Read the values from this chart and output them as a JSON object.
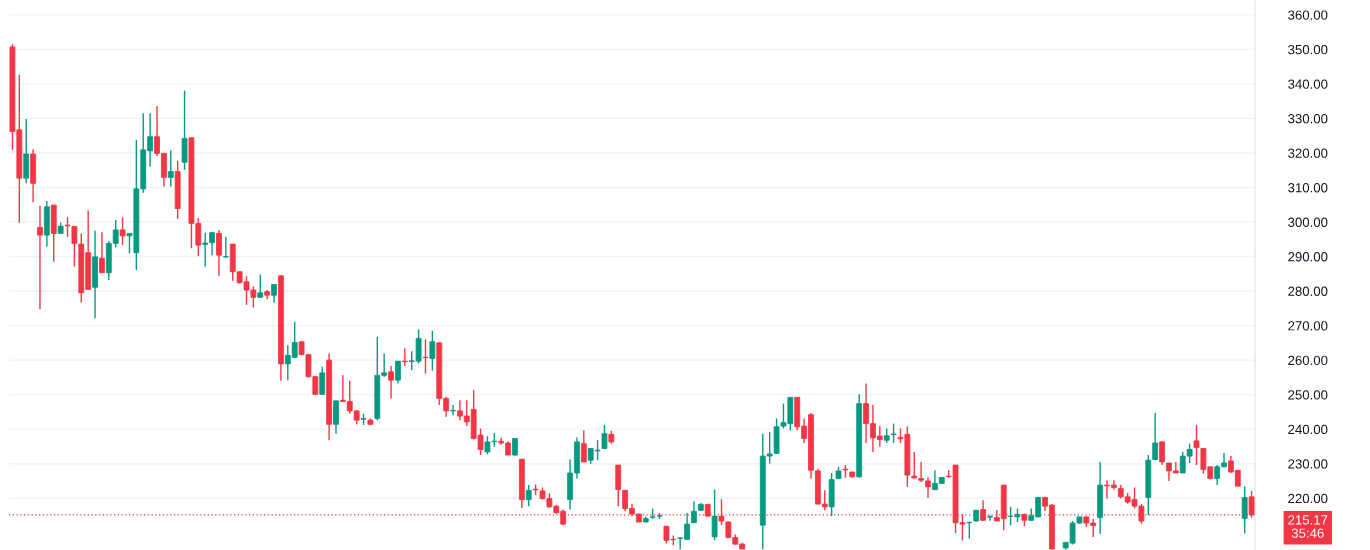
{
  "chart_data": {
    "type": "candlestick",
    "categories": [
      null,
      null,
      null,
      null,
      null,
      null,
      null,
      null,
      null,
      null,
      null,
      null,
      null,
      null,
      null,
      null,
      null,
      null,
      null,
      null,
      null,
      null,
      null,
      null,
      null,
      null,
      null,
      null,
      null,
      null,
      null,
      null,
      null,
      null,
      null,
      null,
      null,
      null,
      null,
      null,
      null,
      null,
      null,
      null,
      null,
      null,
      null,
      null,
      null,
      null,
      null,
      null,
      null,
      null,
      null,
      null,
      null,
      null,
      null,
      null,
      null,
      null,
      null,
      null,
      null,
      null,
      null,
      null,
      null,
      null,
      null,
      null,
      null,
      null,
      null,
      null,
      null,
      null,
      null,
      null,
      null,
      null,
      null,
      null,
      null,
      null,
      null,
      null,
      null,
      null,
      null,
      null,
      null,
      null,
      null,
      null,
      null,
      null,
      null,
      null,
      null,
      null,
      null,
      null,
      null,
      null,
      null,
      null,
      null,
      null,
      null,
      null,
      null,
      null,
      null,
      null,
      null,
      null,
      null,
      null,
      null,
      null,
      null,
      null,
      null,
      null,
      null,
      null,
      null,
      null,
      null,
      null,
      null,
      null,
      null,
      null,
      null,
      null,
      null,
      null,
      null,
      null,
      null,
      null,
      null,
      null,
      null,
      null,
      null,
      null,
      null,
      null,
      null,
      null,
      null,
      null,
      null,
      null,
      null,
      null,
      null,
      null,
      null,
      null,
      null,
      null,
      null,
      null,
      null,
      null,
      null,
      null,
      null,
      null,
      null,
      null,
      null,
      null,
      null,
      null,
      null
    ],
    "ohlc": [
      [
        350.7,
        351.5,
        320.9,
        326.2
      ],
      [
        326.7,
        342.6,
        299.8,
        312.7
      ],
      [
        312.7,
        329.8,
        311.2,
        319.7
      ],
      [
        319.7,
        321.1,
        305.7,
        311.2
      ],
      [
        298.4,
        304.7,
        274.7,
        296.2
      ],
      [
        296.2,
        306.1,
        292.8,
        304.4
      ],
      [
        304.9,
        304.9,
        288.5,
        296.7
      ],
      [
        296.7,
        299.8,
        296.7,
        298.8
      ],
      [
        299.1,
        301.4,
        295.7,
        298.9
      ],
      [
        298.7,
        298.7,
        287.1,
        293.8
      ],
      [
        293.6,
        296.7,
        276.7,
        279.5
      ],
      [
        291.1,
        303.3,
        280.3,
        280.5
      ],
      [
        281.1,
        297.5,
        272.1,
        289.9
      ],
      [
        289.5,
        297.0,
        285.3,
        285.3
      ],
      [
        285.3,
        294.5,
        283.2,
        293.8
      ],
      [
        293.8,
        300.6,
        292.7,
        297.7
      ],
      [
        297.7,
        301.4,
        293.3,
        296.0
      ],
      [
        296.0,
        296.7,
        290.9,
        296.7
      ],
      [
        291.1,
        323.8,
        286.1,
        309.6
      ],
      [
        309.6,
        331.5,
        308.5,
        320.9
      ],
      [
        320.6,
        331.5,
        316.0,
        324.7
      ],
      [
        324.7,
        333.6,
        319.1,
        319.9
      ],
      [
        319.9,
        319.9,
        310.3,
        312.9
      ],
      [
        312.9,
        320.7,
        310.3,
        314.6
      ],
      [
        314.6,
        317.8,
        300.9,
        303.9
      ],
      [
        317.3,
        338.1,
        315.1,
        324.2
      ],
      [
        324.4,
        324.4,
        292.4,
        299.6
      ],
      [
        299.6,
        301.1,
        290.1,
        293.3
      ],
      [
        293.5,
        296.9,
        287.1,
        293.9
      ],
      [
        294.0,
        297.2,
        290.4,
        296.9
      ],
      [
        296.7,
        297.7,
        284.4,
        290.4
      ],
      [
        289.9,
        295.7,
        289.5,
        290.0
      ],
      [
        293.6,
        293.6,
        283.0,
        285.6
      ],
      [
        285.6,
        285.6,
        282.2,
        282.4
      ],
      [
        282.7,
        284.3,
        276.0,
        280.3
      ],
      [
        280.3,
        281.3,
        275.2,
        278.2
      ],
      [
        278.2,
        284.8,
        278.0,
        279.5
      ],
      [
        279.8,
        280.3,
        277.6,
        278.8
      ],
      [
        278.8,
        281.9,
        276.6,
        281.9
      ],
      [
        284.4,
        284.6,
        254.0,
        258.9
      ],
      [
        258.9,
        264.3,
        254.2,
        261.4
      ],
      [
        260.8,
        271.1,
        260.6,
        265.1
      ],
      [
        265.3,
        265.5,
        261.4,
        261.6
      ],
      [
        261.6,
        261.8,
        255.0,
        255.2
      ],
      [
        255.2,
        255.4,
        249.9,
        250.1
      ],
      [
        250.1,
        258.1,
        249.9,
        256.3
      ],
      [
        260.0,
        261.9,
        236.8,
        241.4
      ],
      [
        241.4,
        248.2,
        238.7,
        248.2
      ],
      [
        248.4,
        255.6,
        247.9,
        248.0
      ],
      [
        248.0,
        254.0,
        244.5,
        245.3
      ],
      [
        245.3,
        245.5,
        241.4,
        242.6
      ],
      [
        242.9,
        244.5,
        241.2,
        243.1
      ],
      [
        242.6,
        243.1,
        241.2,
        241.4
      ],
      [
        243.1,
        266.8,
        242.6,
        255.6
      ],
      [
        255.6,
        261.9,
        255.1,
        256.3
      ],
      [
        256.6,
        258.3,
        248.9,
        254.2
      ],
      [
        254.2,
        259.7,
        253.2,
        259.7
      ],
      [
        259.7,
        263.4,
        258.3,
        259.5
      ],
      [
        259.6,
        262.6,
        257.1,
        259.8
      ],
      [
        259.7,
        268.9,
        259.0,
        266.3
      ],
      [
        260.8,
        266.0,
        256.1,
        260.7
      ],
      [
        260.5,
        268.5,
        257.0,
        265.3
      ],
      [
        265.0,
        265.2,
        247.0,
        248.9
      ],
      [
        248.9,
        249.4,
        243.6,
        245.3
      ],
      [
        245.3,
        247.0,
        244.0,
        245.4
      ],
      [
        245.3,
        248.4,
        242.6,
        243.8
      ],
      [
        243.8,
        248.4,
        241.0,
        242.1
      ],
      [
        245.7,
        251.3,
        237.0,
        237.3
      ],
      [
        238.3,
        240.2,
        232.5,
        234.1
      ],
      [
        233.4,
        238.0,
        232.7,
        236.3
      ],
      [
        236.4,
        238.9,
        234.9,
        236.5
      ],
      [
        236.5,
        237.5,
        235.5,
        236.0
      ],
      [
        236.0,
        236.5,
        232.5,
        232.5
      ],
      [
        232.5,
        237.3,
        232.3,
        237.3
      ],
      [
        231.3,
        231.3,
        217.2,
        219.6
      ],
      [
        219.6,
        223.8,
        217.7,
        222.3
      ],
      [
        222.6,
        224.0,
        220.9,
        222.4
      ],
      [
        222.1,
        223.1,
        219.6,
        219.9
      ],
      [
        219.9,
        221.4,
        217.2,
        217.5
      ],
      [
        217.7,
        218.0,
        215.5,
        215.8
      ],
      [
        216.2,
        216.7,
        212.2,
        212.5
      ],
      [
        219.6,
        231.2,
        216.7,
        227.3
      ],
      [
        227.3,
        237.6,
        225.7,
        236.3
      ],
      [
        235.8,
        239.7,
        230.5,
        230.5
      ],
      [
        231.0,
        234.4,
        230.0,
        234.4
      ],
      [
        233.7,
        236.8,
        231.0,
        233.9
      ],
      [
        234.4,
        241.2,
        234.2,
        238.7
      ],
      [
        238.5,
        239.5,
        235.8,
        236.3
      ],
      [
        229.6,
        229.6,
        217.7,
        222.5
      ],
      [
        222.3,
        222.3,
        216.2,
        217.0
      ],
      [
        217.0,
        218.4,
        214.8,
        215.4
      ],
      [
        215.4,
        215.6,
        213.1,
        213.1
      ],
      [
        213.1,
        214.6,
        213.1,
        214.1
      ],
      [
        214.5,
        217.0,
        214.0,
        214.6
      ],
      [
        214.8,
        215.7,
        214.0,
        214.9
      ],
      [
        211.9,
        211.9,
        206.9,
        207.8
      ],
      [
        208.1,
        209.2,
        206.4,
        208.0
      ],
      [
        208.4,
        208.7,
        205.2,
        208.5
      ],
      [
        208.1,
        215.7,
        208.0,
        212.5
      ],
      [
        212.9,
        219.1,
        212.8,
        216.2
      ],
      [
        216.5,
        218.6,
        216.2,
        218.2
      ],
      [
        218.2,
        218.2,
        214.8,
        214.8
      ],
      [
        208.8,
        222.5,
        207.8,
        214.8
      ],
      [
        214.8,
        219.7,
        212.2,
        213.4
      ],
      [
        213.1,
        213.3,
        208.6,
        208.6
      ],
      [
        208.6,
        209.5,
        206.5,
        206.7
      ],
      [
        206.7,
        207.1,
        205.2,
        205.3
      ],
      null,
      null,
      [
        212.2,
        238.7,
        205.2,
        232.2
      ],
      [
        232.2,
        239.2,
        230.0,
        232.8
      ],
      [
        233.0,
        243.1,
        232.8,
        240.7
      ],
      [
        240.9,
        247.4,
        240.2,
        241.9
      ],
      [
        241.6,
        249.2,
        239.7,
        249.2
      ],
      [
        249.2,
        249.2,
        239.7,
        240.7
      ],
      [
        240.9,
        243.1,
        236.0,
        237.3
      ],
      [
        244.2,
        244.7,
        225.7,
        228.1
      ],
      [
        227.9,
        228.6,
        218.3,
        218.3
      ],
      [
        218.3,
        222.3,
        216.5,
        217.5
      ],
      [
        217.5,
        227.3,
        214.8,
        225.4
      ],
      [
        225.7,
        229.1,
        225.5,
        227.9
      ],
      [
        228.4,
        229.6,
        225.9,
        228.2
      ],
      [
        227.6,
        227.6,
        225.9,
        226.2
      ],
      [
        226.2,
        250.1,
        226.0,
        247.4
      ],
      [
        247.4,
        253.2,
        236.0,
        241.6
      ],
      [
        241.6,
        247.0,
        233.4,
        237.5
      ],
      [
        238.0,
        240.9,
        234.9,
        237.0
      ],
      [
        236.8,
        240.2,
        236.0,
        238.1
      ],
      [
        238.4,
        241.6,
        236.0,
        238.6
      ],
      [
        237.6,
        240.2,
        236.0,
        237.2
      ],
      [
        238.5,
        240.8,
        223.3,
        226.7
      ],
      [
        226.4,
        233.4,
        225.7,
        225.9
      ],
      [
        225.7,
        230.5,
        224.7,
        225.2
      ],
      [
        225.0,
        226.1,
        220.1,
        223.3
      ],
      [
        222.5,
        228.1,
        222.3,
        224.3
      ],
      [
        224.3,
        226.1,
        224.1,
        226.0
      ],
      [
        226.4,
        228.1,
        226.0,
        226.2
      ],
      [
        229.6,
        229.6,
        209.9,
        212.9
      ],
      [
        212.9,
        215.4,
        207.8,
        212.5
      ],
      [
        212.9,
        213.2,
        208.3,
        213.0
      ],
      [
        213.4,
        216.5,
        213.2,
        216.5
      ],
      [
        216.7,
        219.4,
        213.4,
        213.6
      ],
      [
        214.5,
        215.1,
        213.5,
        214.7
      ],
      [
        214.4,
        216.6,
        213.4,
        213.4
      ],
      [
        223.8,
        223.8,
        210.7,
        214.1
      ],
      [
        214.7,
        217.5,
        212.1,
        214.8
      ],
      [
        214.6,
        217.0,
        213.1,
        215.3
      ],
      [
        215.3,
        215.6,
        211.9,
        213.6
      ],
      [
        213.6,
        217.0,
        213.4,
        214.9
      ],
      [
        214.6,
        220.4,
        214.4,
        220.2
      ],
      [
        220.2,
        220.4,
        216.3,
        217.7
      ],
      [
        218.0,
        218.3,
        205.1,
        205.3
      ],
      null,
      [
        205.6,
        207.3,
        205.2,
        207.2
      ],
      [
        207.0,
        213.4,
        206.6,
        212.8
      ],
      [
        212.8,
        214.6,
        212.6,
        214.6
      ],
      [
        214.6,
        214.6,
        211.7,
        212.8
      ],
      [
        212.8,
        214.0,
        208.8,
        212.1
      ],
      [
        214.4,
        230.5,
        209.6,
        223.8
      ],
      [
        223.8,
        225.2,
        219.9,
        223.6
      ],
      [
        223.8,
        225.2,
        222.5,
        223.1
      ],
      [
        222.8,
        223.8,
        219.9,
        220.4
      ],
      [
        220.4,
        221.5,
        218.4,
        218.9
      ],
      [
        219.6,
        223.1,
        217.0,
        217.7
      ],
      [
        217.7,
        218.3,
        212.6,
        213.4
      ],
      [
        220.2,
        232.5,
        215.1,
        231.0
      ],
      [
        231.2,
        244.7,
        231.0,
        236.0
      ],
      [
        236.3,
        236.6,
        229.6,
        230.5
      ],
      [
        230.2,
        230.2,
        225.0,
        227.9
      ],
      [
        227.9,
        230.5,
        227.3,
        227.3
      ],
      [
        227.3,
        233.4,
        227.3,
        232.2
      ],
      [
        232.2,
        235.8,
        230.2,
        234.1
      ],
      [
        236.6,
        241.2,
        229.6,
        234.7
      ],
      [
        234.4,
        234.4,
        227.1,
        228.3
      ],
      [
        229.1,
        229.1,
        225.4,
        225.7
      ],
      [
        225.7,
        229.6,
        223.8,
        229.1
      ],
      [
        229.1,
        233.1,
        229.0,
        230.2
      ],
      [
        230.8,
        232.2,
        227.3,
        227.6
      ],
      [
        228.1,
        228.1,
        223.5,
        223.5
      ],
      [
        214.1,
        223.5,
        209.8,
        220.2
      ],
      [
        220.4,
        222.1,
        214.4,
        215.17
      ]
    ],
    "colors": [
      "#f23645",
      "#f23645",
      "#089981",
      "#f23645",
      "#f23645",
      "#089981",
      "#f23645",
      "#089981",
      "#f23645",
      "#f23645",
      "#f23645",
      "#f23645",
      "#089981",
      "#f23645",
      "#089981",
      "#089981",
      "#f23645",
      "#089981",
      "#089981",
      "#089981",
      "#089981",
      "#f23645",
      "#f23645",
      "#089981",
      "#f23645",
      "#089981",
      "#f23645",
      "#f23645",
      "#089981",
      "#089981",
      "#f23645",
      "#089981",
      "#f23645",
      "#f23645",
      "#f23645",
      "#f23645",
      "#089981",
      "#f23645",
      "#089981",
      "#f23645",
      "#089981",
      "#089981",
      "#f23645",
      "#f23645",
      "#f23645",
      "#089981",
      "#f23645",
      "#089981",
      "#f23645",
      "#f23645",
      "#f23645",
      "#089981",
      "#f23645",
      "#089981",
      "#089981",
      "#f23645",
      "#089981",
      "#f23645",
      "#089981",
      "#089981",
      "#f23645",
      "#089981",
      "#f23645",
      "#f23645",
      "#089981",
      "#f23645",
      "#f23645",
      "#f23645",
      "#f23645",
      "#089981",
      "#089981",
      "#f23645",
      "#f23645",
      "#089981",
      "#f23645",
      "#089981",
      "#f23645",
      "#f23645",
      "#f23645",
      "#f23645",
      "#f23645",
      "#089981",
      "#089981",
      "#f23645",
      "#089981",
      "#089981",
      "#089981",
      "#f23645",
      "#f23645",
      "#f23645",
      "#f23645",
      "#f23645",
      "#089981",
      "#089981",
      "#089981",
      "#f23645",
      "#f23645",
      "#089981",
      "#089981",
      "#089981",
      "#089981",
      "#f23645",
      "#089981",
      "#f23645",
      "#f23645",
      "#f23645",
      "#f23645",
      null,
      null,
      "#089981",
      "#089981",
      "#089981",
      "#089981",
      "#089981",
      "#f23645",
      "#f23645",
      "#f23645",
      "#f23645",
      "#f23645",
      "#089981",
      "#089981",
      "#f23645",
      "#f23645",
      "#089981",
      "#f23645",
      "#f23645",
      "#f23645",
      "#089981",
      "#089981",
      "#f23645",
      "#f23645",
      "#f23645",
      "#f23645",
      "#f23645",
      "#089981",
      "#089981",
      "#f23645",
      "#f23645",
      "#f23645",
      "#089981",
      "#089981",
      "#f23645",
      "#089981",
      "#f23645",
      "#f23645",
      "#089981",
      "#089981",
      "#f23645",
      "#089981",
      "#089981",
      "#f23645",
      "#f23645",
      null,
      "#089981",
      "#089981",
      "#089981",
      "#f23645",
      "#f23645",
      "#089981",
      "#f23645",
      "#f23645",
      "#f23645",
      "#f23645",
      "#f23645",
      "#f23645",
      "#089981",
      "#089981",
      "#f23645",
      "#f23645",
      "#f23645",
      "#089981",
      "#089981",
      "#f23645",
      "#f23645",
      "#f23645",
      "#089981",
      "#089981",
      "#f23645",
      "#f23645",
      "#089981",
      "#f23645"
    ],
    "ylim": [
      205,
      364.3
    ],
    "yticks": [
      {
        "value": 220,
        "label": "220.00"
      },
      {
        "value": 230,
        "label": "230.00"
      },
      {
        "value": 240,
        "label": "240.00"
      },
      {
        "value": 250,
        "label": "250.00"
      },
      {
        "value": 260,
        "label": "260.00"
      },
      {
        "value": 270,
        "label": "270.00"
      },
      {
        "value": 280,
        "label": "280.00"
      },
      {
        "value": 290,
        "label": "290.00"
      },
      {
        "value": 300,
        "label": "300.00"
      },
      {
        "value": 310,
        "label": "310.00"
      },
      {
        "value": 320,
        "label": "320.00"
      },
      {
        "value": 330,
        "label": "330.00"
      },
      {
        "value": 340,
        "label": "340.00"
      },
      {
        "value": 350,
        "label": "350.00"
      },
      {
        "value": 360,
        "label": "360.00"
      }
    ],
    "grid": "y",
    "tick_labels": "y",
    "ref_lines": [
      {
        "axis": "y",
        "value": 215.17,
        "label": "215.17",
        "color": "#f23645",
        "line_style": "dotted"
      }
    ],
    "annotations": [
      "35:46"
    ]
  }
}
